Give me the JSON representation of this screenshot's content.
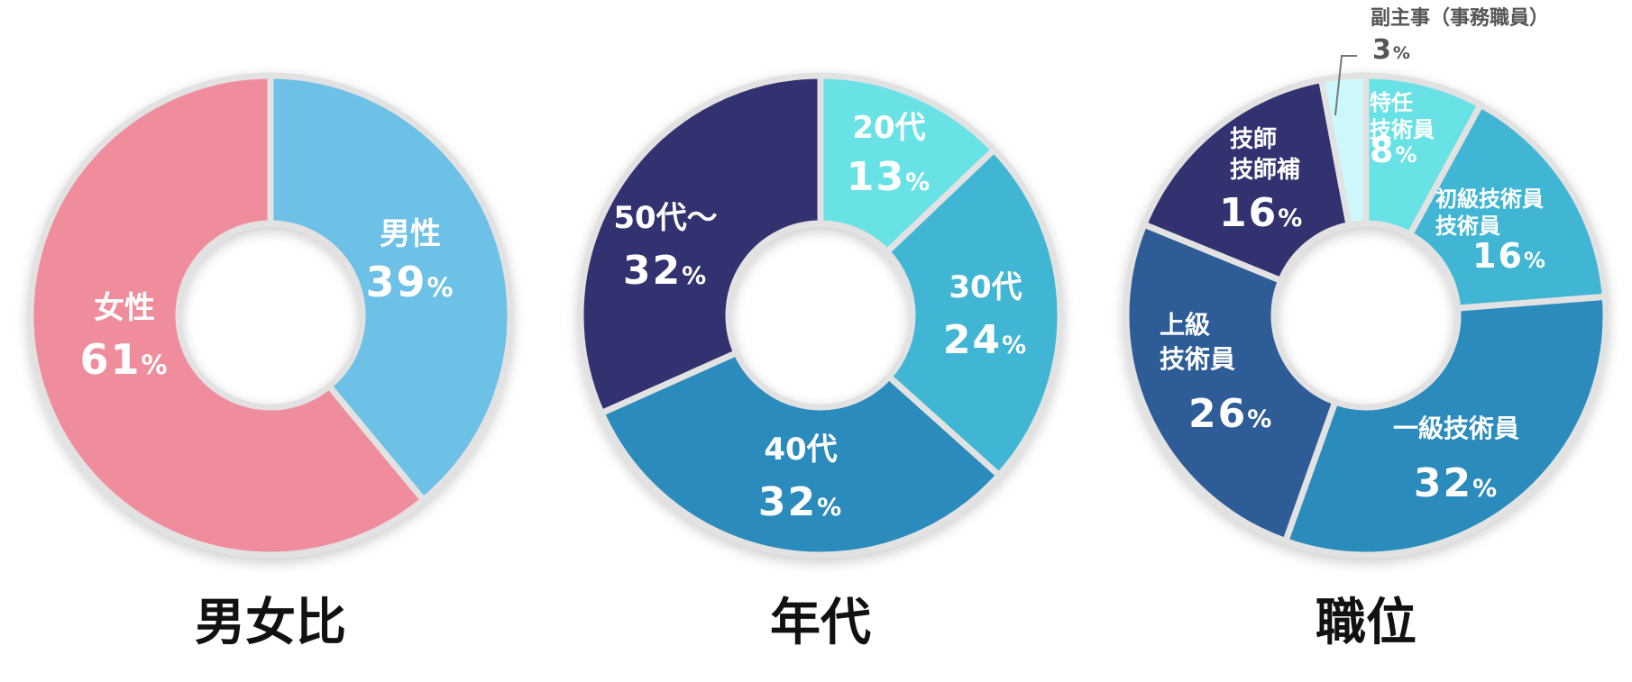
{
  "chart_data": [
    {
      "type": "pie",
      "variant": "donut",
      "title": "男女比",
      "slices": [
        {
          "key": "male",
          "name_lines": [
            "男性"
          ],
          "value": 39,
          "display": "39",
          "unit": "%",
          "color": "#6dc0e6"
        },
        {
          "key": "female",
          "name_lines": [
            "女性"
          ],
          "value": 61,
          "display": "61",
          "unit": "%",
          "color": "#f08d9d"
        }
      ]
    },
    {
      "type": "pie",
      "variant": "donut",
      "title": "年代",
      "slices": [
        {
          "key": "20s",
          "name_lines": [
            "20代"
          ],
          "value": 13,
          "display": "13",
          "unit": "%",
          "color": "#69e2e6"
        },
        {
          "key": "30s",
          "name_lines": [
            "30代"
          ],
          "value": 24,
          "display": "24",
          "unit": "%",
          "color": "#41b6d4"
        },
        {
          "key": "40s",
          "name_lines": [
            "40代"
          ],
          "value": 32,
          "display": "32",
          "unit": "%",
          "color": "#2c8bbc"
        },
        {
          "key": "50s",
          "name_lines": [
            "50代～"
          ],
          "value": 32,
          "display": "32",
          "unit": "%",
          "color": "#313370"
        }
      ]
    },
    {
      "type": "pie",
      "variant": "donut",
      "title": "職位",
      "slices": [
        {
          "key": "special",
          "name_lines": [
            "特任",
            "技術員"
          ],
          "value": 8,
          "display": "8",
          "unit": "%",
          "color": "#69e2e6"
        },
        {
          "key": "junior",
          "name_lines": [
            "初級技術員",
            "技術員"
          ],
          "value": 16,
          "display": "16",
          "unit": "%",
          "color": "#41b6d4"
        },
        {
          "key": "first-class",
          "name_lines": [
            "一級技術員"
          ],
          "value": 32,
          "display": "32",
          "unit": "%",
          "color": "#2c8bbc"
        },
        {
          "key": "senior",
          "name_lines": [
            "上級",
            "技術員"
          ],
          "value": 26,
          "display": "26",
          "unit": "%",
          "color": "#2f5c97"
        },
        {
          "key": "engineer",
          "name_lines": [
            "技師",
            "技師補"
          ],
          "value": 16,
          "display": "16",
          "unit": "%",
          "color": "#313370"
        },
        {
          "key": "deputy",
          "name_lines": [
            "副主事（事務職員）"
          ],
          "value": 3,
          "display": "3",
          "unit": "%",
          "color": "#cdf8fb",
          "label_outside": true
        }
      ]
    }
  ]
}
